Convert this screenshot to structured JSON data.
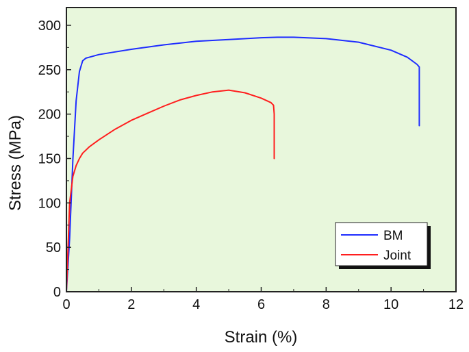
{
  "chart_data": {
    "type": "line",
    "xlabel": "Strain (%)",
    "ylabel": "Stress (MPa)",
    "xlim": [
      0,
      12
    ],
    "ylim": [
      0,
      320
    ],
    "xticks": [
      0,
      2,
      4,
      6,
      8,
      10,
      12
    ],
    "yticks": [
      0,
      50,
      100,
      150,
      200,
      250,
      300
    ],
    "grid": false,
    "legend_position": "bottom-right",
    "background_color": "#e8f7dc",
    "series": [
      {
        "name": "BM",
        "color": "#1e2cff",
        "x": [
          0,
          0.1,
          0.2,
          0.3,
          0.4,
          0.5,
          0.6,
          0.8,
          1,
          1.5,
          2,
          3,
          4,
          5,
          6,
          6.5,
          7,
          8,
          9,
          10,
          10.5,
          10.8,
          10.87,
          10.87
        ],
        "y": [
          0,
          60,
          150,
          215,
          248,
          260,
          263,
          265,
          267,
          270,
          273,
          278,
          282,
          284,
          286,
          286.5,
          286.5,
          285,
          281,
          272,
          264,
          256,
          253,
          187
        ]
      },
      {
        "name": "Joint",
        "color": "#ff1e1e",
        "x": [
          0,
          0.05,
          0.1,
          0.2,
          0.3,
          0.4,
          0.5,
          0.7,
          1,
          1.5,
          2,
          2.5,
          3,
          3.5,
          4,
          4.5,
          5,
          5.5,
          6,
          6.3,
          6.38,
          6.4,
          6.4
        ],
        "y": [
          0,
          50,
          100,
          130,
          142,
          150,
          156,
          163,
          171,
          183,
          193,
          201,
          209,
          216,
          221,
          225,
          227,
          224,
          218,
          213,
          210,
          200,
          150
        ]
      }
    ]
  }
}
